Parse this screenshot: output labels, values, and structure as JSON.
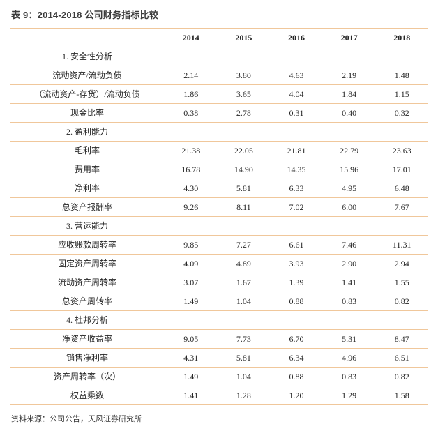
{
  "title": "表 9：2014-2018 公司财务指标比较",
  "source_note": "资料来源：公司公告，天风证券研究所",
  "colors": {
    "divider_line": "#f0c79b",
    "title_text": "#3b3b3b",
    "body_text": "#262626"
  },
  "chart_data": {
    "type": "table",
    "columns": [
      "",
      "2014",
      "2015",
      "2016",
      "2017",
      "2018"
    ],
    "rows": [
      {
        "label": "1. 安全性分析",
        "section": true,
        "values": [
          "",
          "",
          "",
          "",
          ""
        ]
      },
      {
        "label": "流动资产/流动负债",
        "section": false,
        "values": [
          "2.14",
          "3.80",
          "4.63",
          "2.19",
          "1.48"
        ]
      },
      {
        "label": "（流动资产-存货）/流动负债",
        "section": false,
        "values": [
          "1.86",
          "3.65",
          "4.04",
          "1.84",
          "1.15"
        ]
      },
      {
        "label": "现金比率",
        "section": false,
        "values": [
          "0.38",
          "2.78",
          "0.31",
          "0.40",
          "0.32"
        ]
      },
      {
        "label": "2. 盈利能力",
        "section": true,
        "values": [
          "",
          "",
          "",
          "",
          ""
        ]
      },
      {
        "label": "毛利率",
        "section": false,
        "values": [
          "21.38",
          "22.05",
          "21.81",
          "22.79",
          "23.63"
        ]
      },
      {
        "label": "费用率",
        "section": false,
        "values": [
          "16.78",
          "14.90",
          "14.35",
          "15.96",
          "17.01"
        ]
      },
      {
        "label": "净利率",
        "section": false,
        "values": [
          "4.30",
          "5.81",
          "6.33",
          "4.95",
          "6.48"
        ]
      },
      {
        "label": "总资产报酬率",
        "section": false,
        "values": [
          "9.26",
          "8.11",
          "7.02",
          "6.00",
          "7.67"
        ]
      },
      {
        "label": "3. 营运能力",
        "section": true,
        "values": [
          "",
          "",
          "",
          "",
          ""
        ]
      },
      {
        "label": "应收账款周转率",
        "section": false,
        "values": [
          "9.85",
          "7.27",
          "6.61",
          "7.46",
          "11.31"
        ]
      },
      {
        "label": "固定资产周转率",
        "section": false,
        "values": [
          "4.09",
          "4.89",
          "3.93",
          "2.90",
          "2.94"
        ]
      },
      {
        "label": "流动资产周转率",
        "section": false,
        "values": [
          "3.07",
          "1.67",
          "1.39",
          "1.41",
          "1.55"
        ]
      },
      {
        "label": "总资产周转率",
        "section": false,
        "values": [
          "1.49",
          "1.04",
          "0.88",
          "0.83",
          "0.82"
        ]
      },
      {
        "label": "4. 杜邦分析",
        "section": true,
        "values": [
          "",
          "",
          "",
          "",
          ""
        ]
      },
      {
        "label": "净资产收益率",
        "section": false,
        "values": [
          "9.05",
          "7.73",
          "6.70",
          "5.31",
          "8.47"
        ]
      },
      {
        "label": "销售净利率",
        "section": false,
        "values": [
          "4.31",
          "5.81",
          "6.34",
          "4.96",
          "6.51"
        ]
      },
      {
        "label": "资产周转率（次）",
        "section": false,
        "values": [
          "1.49",
          "1.04",
          "0.88",
          "0.83",
          "0.82"
        ]
      },
      {
        "label": "权益乘数",
        "section": false,
        "values": [
          "1.41",
          "1.28",
          "1.20",
          "1.29",
          "1.58"
        ]
      }
    ]
  }
}
